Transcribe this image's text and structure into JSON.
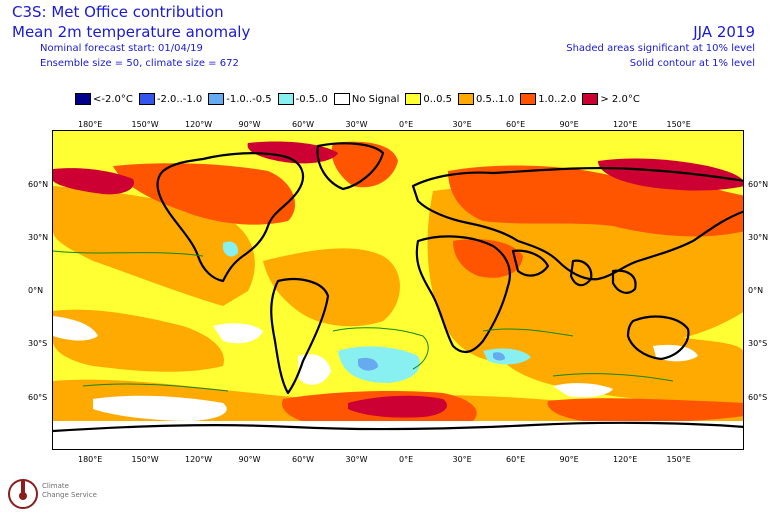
{
  "header": {
    "title": "C3S: Met Office contribution",
    "subtitle": "Mean 2m temperature anomaly",
    "nominal": "Nominal forecast start: 01/04/19",
    "ensemble": "Ensemble size = 50, climate size = 672",
    "season": "JJA 2019",
    "note_shaded": "Shaded areas significant at 10% level",
    "note_solid": "Solid contour at 1% level"
  },
  "legend": [
    {
      "label": "<-2.0°C",
      "color": "#00008b"
    },
    {
      "label": "-2.0..-1.0",
      "color": "#3355ee"
    },
    {
      "label": "-1.0..-0.5",
      "color": "#66aaf0"
    },
    {
      "label": "-0.5..0",
      "color": "#88f0f0"
    },
    {
      "label": "No Signal",
      "color": "#ffffff"
    },
    {
      "label": "0..0.5",
      "color": "#ffff33"
    },
    {
      "label": "0.5..1.0",
      "color": "#ffaa00"
    },
    {
      "label": "1.0..2.0",
      "color": "#ff5500"
    },
    {
      "label": "> 2.0°C",
      "color": "#cc0033"
    }
  ],
  "axes": {
    "lon_ticks": [
      "180°E",
      "150°W",
      "120°W",
      "90°W",
      "60°W",
      "30°W",
      "0°E",
      "30°E",
      "60°E",
      "90°E",
      "120°E",
      "150°E"
    ],
    "lat_ticks": [
      "60°N",
      "30°N",
      "0°N",
      "30°S",
      "60°S"
    ]
  },
  "logo": {
    "line1": "Climate",
    "line2": "Change Service"
  }
}
